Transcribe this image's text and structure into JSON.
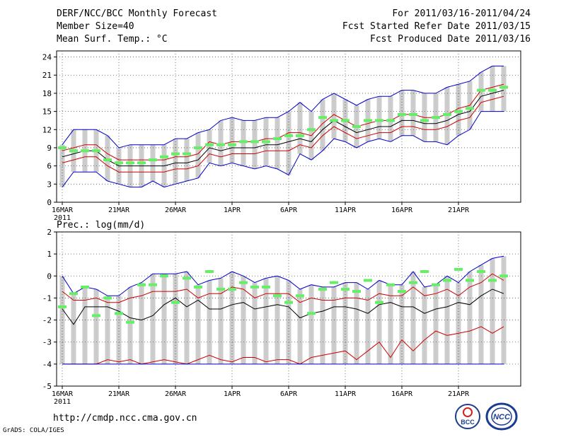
{
  "header": {
    "title": "DERF/NCC/BCC Monthly Forecast",
    "member_size": "Member Size=40",
    "variable": "Mean Surf. Temp.: °C",
    "period": "For 2011/03/16-2011/04/24",
    "refer_date": "Fcst Started Refer Date 2011/03/15",
    "produced_date": "Fcst Produced Date 2011/03/16"
  },
  "footer": {
    "url": "http://cmdp.ncc.cma.gov.cn",
    "credit": "GrADS: COLA/IGES",
    "logo_bcc": "BCC",
    "logo_ncc": "NCC"
  },
  "colors": {
    "max_line": "#0000cc",
    "pct_line": "#cc0000",
    "mean_line": "#000000",
    "box": "#cccccc",
    "obs_mark": "#66ee66"
  },
  "chart_data": [
    {
      "type": "line",
      "title": "Mean Surf. Temp.: °C",
      "x_tick_labels": [
        "16MAR",
        "21MAR",
        "26MAR",
        "1APR",
        "6APR",
        "11APR",
        "16APR",
        "21APR"
      ],
      "x_tick_sublabel": "2011",
      "yticks": [
        0,
        3,
        6,
        9,
        12,
        15,
        18,
        21,
        24
      ],
      "ylim": [
        0,
        25
      ],
      "days": 40,
      "series": [
        {
          "name": "max",
          "values": [
            2.5,
            5,
            5,
            5,
            3.5,
            3,
            2.5,
            2.5,
            3.5,
            2.5,
            3,
            3.5,
            4,
            6.5,
            6,
            6.5,
            6,
            5.5,
            6,
            5.5,
            4.5,
            8,
            7,
            8.5,
            10.5,
            10,
            9,
            10,
            10.5,
            10,
            11,
            11,
            10,
            10,
            9.5,
            11,
            12,
            15,
            15,
            15
          ]
        },
        {
          "name": "p80",
          "values": [
            6.5,
            7,
            7.5,
            7.5,
            6,
            5,
            5,
            5,
            5,
            5,
            5.5,
            5.5,
            6,
            8,
            7.5,
            8,
            8,
            8,
            8.5,
            8.5,
            8.5,
            9.5,
            9,
            11,
            12.5,
            11.5,
            10.5,
            11,
            11.5,
            11.5,
            12.5,
            12.5,
            12,
            12,
            12.5,
            13.5,
            14,
            16.5,
            17,
            17.5
          ]
        },
        {
          "name": "mean",
          "values": [
            7.5,
            8,
            8.5,
            8.5,
            7,
            6,
            6,
            6,
            6,
            6,
            6.5,
            6.5,
            7,
            9,
            8.5,
            9,
            9,
            9,
            9.5,
            9.5,
            10,
            10.5,
            10,
            12,
            13.5,
            12.5,
            11.5,
            12,
            12.5,
            12.5,
            13.5,
            13.5,
            13,
            13,
            13.5,
            14.5,
            15,
            17.5,
            18,
            18.5
          ]
        },
        {
          "name": "p20",
          "values": [
            8.5,
            9,
            9.5,
            9.5,
            8,
            7,
            7,
            7,
            7,
            7,
            7.5,
            7.5,
            8,
            10,
            9.5,
            10,
            10,
            10,
            10.5,
            10.5,
            11.5,
            11.5,
            11,
            13,
            14.5,
            13.5,
            12.5,
            13,
            13.5,
            13.5,
            14.5,
            14.5,
            14,
            14,
            14.5,
            15.5,
            16,
            18.5,
            19,
            19.5
          ]
        },
        {
          "name": "min",
          "values": [
            9.5,
            12,
            12,
            12,
            11,
            9,
            9.5,
            9.5,
            9.5,
            9.5,
            10.5,
            10.5,
            11.5,
            12,
            13.5,
            14,
            13.5,
            13.5,
            14,
            14,
            15,
            16.5,
            15,
            17,
            18,
            17,
            16,
            17,
            17.5,
            17.5,
            18.5,
            18.5,
            18,
            18,
            19,
            19.5,
            20,
            21.5,
            22.5,
            22.5
          ]
        },
        {
          "name": "obs",
          "values": [
            9,
            8.5,
            8.5,
            8.5,
            7,
            6.5,
            6.5,
            6.5,
            7,
            7.5,
            8,
            8,
            9,
            9.5,
            9.5,
            9.5,
            10,
            10,
            10,
            10.5,
            11,
            11,
            12,
            14,
            13.5,
            13.5,
            12.5,
            13.5,
            13.5,
            13.5,
            14.5,
            14.5,
            13.5,
            14,
            14.5,
            15,
            15.5,
            18.5,
            18.5,
            19
          ]
        }
      ]
    },
    {
      "type": "line",
      "title": "Prec.: log(mm/d)",
      "x_tick_labels": [
        "16MAR",
        "21MAR",
        "26MAR",
        "1APR",
        "6APR",
        "11APR",
        "16APR",
        "21APR"
      ],
      "x_tick_sublabel": "2011",
      "yticks": [
        -5,
        -4,
        -3,
        -2,
        -1,
        0,
        1,
        2
      ],
      "ylim": [
        -5,
        2
      ],
      "days": 40,
      "series": [
        {
          "name": "max",
          "values": [
            0,
            -0.8,
            -0.5,
            -0.6,
            -0.9,
            -0.9,
            -0.5,
            -0.3,
            0.1,
            0.1,
            0.1,
            0.2,
            -0.4,
            -0.2,
            -0.1,
            0.2,
            0,
            -0.3,
            -0.1,
            0,
            -0.2,
            -0.6,
            -0.4,
            -0.5,
            -0.5,
            -0.3,
            -0.3,
            -0.6,
            -0.2,
            -0.4,
            -0.4,
            0.2,
            -0.5,
            -0.4,
            0,
            -0.3,
            0.2,
            0.5,
            0.8,
            0.9
          ]
        },
        {
          "name": "p80",
          "values": [
            -0.7,
            -1.1,
            -1.1,
            -1,
            -1.2,
            -1.2,
            -1,
            -0.9,
            -0.7,
            -0.7,
            -0.7,
            -0.6,
            -1,
            -0.8,
            -0.8,
            -0.5,
            -0.6,
            -1,
            -0.8,
            -0.8,
            -0.8,
            -1.2,
            -1,
            -1.1,
            -1.1,
            -1,
            -1,
            -1.1,
            -0.8,
            -0.9,
            -0.9,
            -0.5,
            -0.9,
            -0.8,
            -0.6,
            -0.9,
            -0.5,
            -0.3,
            0.1,
            -0.2
          ]
        },
        {
          "name": "mean",
          "values": [
            -1.5,
            -2.2,
            -1.4,
            -1.4,
            -1.4,
            -1.6,
            -1.9,
            -2,
            -1.8,
            -1.3,
            -1,
            -1.4,
            -1.1,
            -1.5,
            -1.5,
            -1.3,
            -1.2,
            -1.5,
            -1.4,
            -1.3,
            -1.4,
            -1.9,
            -1.7,
            -1.6,
            -1.4,
            -1.4,
            -1.5,
            -1.7,
            -1.3,
            -1.2,
            -1.4,
            -1.4,
            -1.7,
            -1.5,
            -1.4,
            -1.2,
            -1.3,
            -0.9,
            -0.6,
            -0.8
          ]
        },
        {
          "name": "p20",
          "values": [
            -4,
            -4,
            -4,
            -4,
            -3.8,
            -3.9,
            -3.8,
            -4,
            -3.9,
            -3.8,
            -3.9,
            -4,
            -3.8,
            -3.6,
            -3.8,
            -3.9,
            -3.7,
            -3.7,
            -3.9,
            -3.8,
            -3.8,
            -4,
            -3.7,
            -3.6,
            -3.5,
            -3.4,
            -3.8,
            -3.4,
            -3,
            -3.7,
            -2.9,
            -3.4,
            -2.9,
            -2.5,
            -2.7,
            -2.6,
            -2.5,
            -2.3,
            -2.6,
            -2.3
          ]
        },
        {
          "name": "min",
          "values": [
            -4,
            -4,
            -4,
            -4,
            -4,
            -4,
            -4,
            -4,
            -4,
            -4,
            -4,
            -4,
            -4,
            -4,
            -4,
            -4,
            -4,
            -4,
            -4,
            -4,
            -4,
            -4,
            -4,
            -4,
            -4,
            -4,
            -4,
            -4,
            -4,
            -4,
            -4,
            -4,
            -4,
            -4,
            -4,
            -4,
            -4,
            -4,
            -4,
            -4
          ]
        },
        {
          "name": "obs",
          "values": [
            -1.4,
            -0.8,
            -0.5,
            -1.8,
            -1,
            -1.7,
            -2.1,
            -0.4,
            -0.4,
            0,
            -1.2,
            -0.1,
            -0.5,
            0.2,
            -0.6,
            -0.6,
            -0.3,
            -0.5,
            -0.5,
            -0.9,
            -1.2,
            -0.9,
            -1.7,
            -0.6,
            -0.3,
            -0.6,
            -0.7,
            -0.2,
            -1.2,
            -0.4,
            -0.7,
            -0.3,
            0.2,
            -0.4,
            -0.2,
            0.3,
            -0.2,
            0.2,
            -0.2,
            0
          ]
        }
      ]
    }
  ]
}
